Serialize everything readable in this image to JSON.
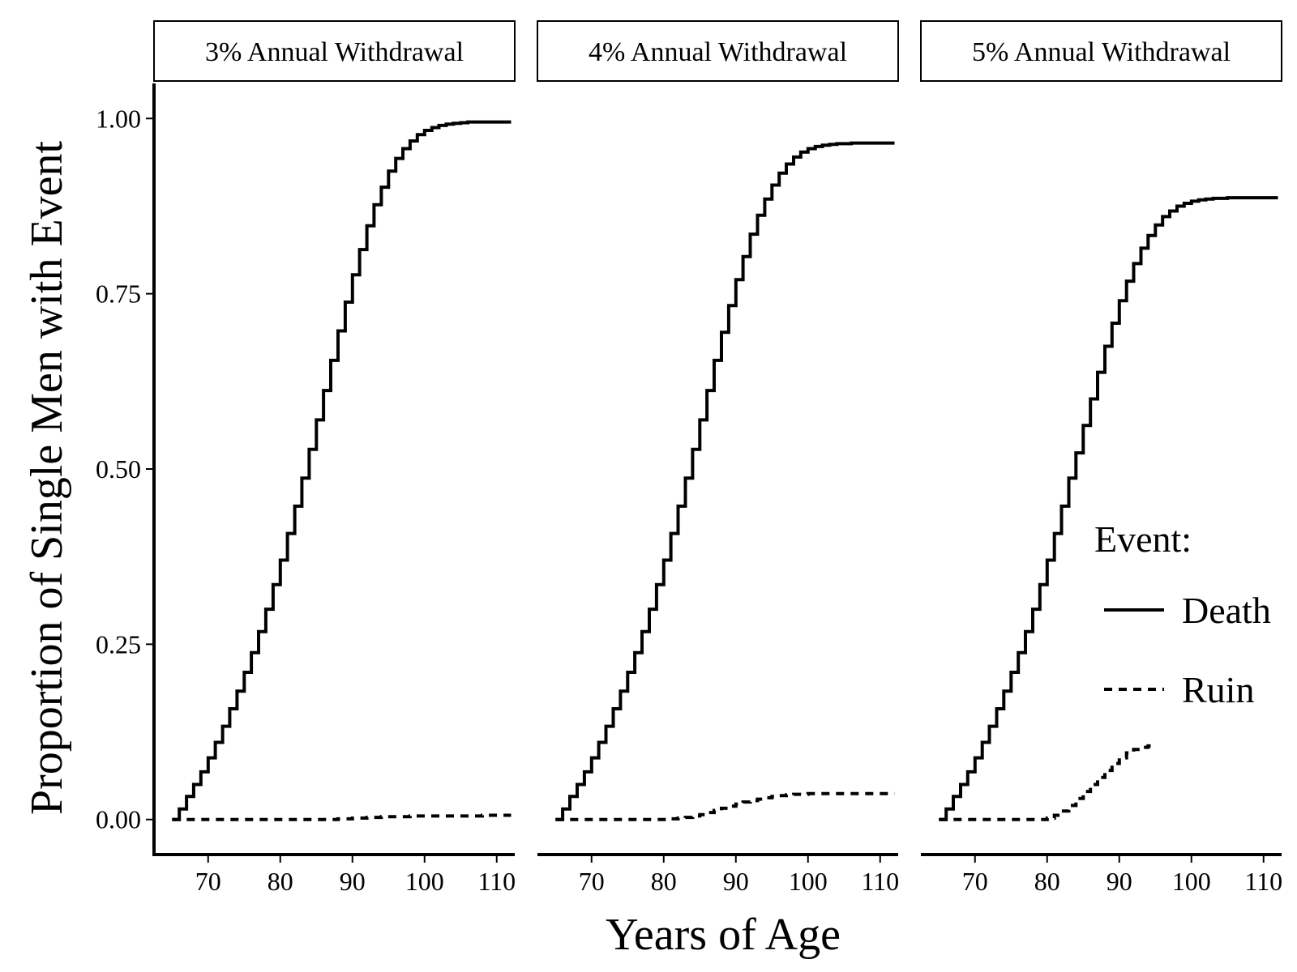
{
  "chart_data": {
    "type": "line",
    "xlabel": "Years of Age",
    "ylabel": "Proportion of Single Men with Event",
    "xlim": [
      62.5,
      112.5
    ],
    "ylim": [
      -0.05,
      1.05
    ],
    "x_ticks": [
      70,
      80,
      90,
      100,
      110
    ],
    "y_ticks": [
      0,
      0.25,
      0.5,
      0.75,
      1
    ],
    "x_tick_labels": [
      "70",
      "80",
      "90",
      "100",
      "110"
    ],
    "y_tick_labels": [
      "0.00",
      "0.25",
      "0.50",
      "0.75",
      "1.00"
    ],
    "legend": {
      "title": "Event:",
      "position": "right-inside",
      "items": [
        {
          "label": "Death",
          "linestyle": "solid"
        },
        {
          "label": "Ruin",
          "linestyle": "dashed"
        }
      ]
    },
    "step": true,
    "grid": false,
    "panels": [
      {
        "title": "3% Annual Withdrawal",
        "series": [
          {
            "name": "Death",
            "linestyle": "solid",
            "x": [
              65,
              66,
              67,
              68,
              69,
              70,
              71,
              72,
              73,
              74,
              75,
              76,
              77,
              78,
              79,
              80,
              81,
              82,
              83,
              84,
              85,
              86,
              87,
              88,
              89,
              90,
              91,
              92,
              93,
              94,
              95,
              96,
              97,
              98,
              99,
              100,
              101,
              102,
              103,
              104,
              105,
              106,
              108,
              110,
              112
            ],
            "y": [
              0,
              0.015,
              0.033,
              0.05,
              0.068,
              0.088,
              0.11,
              0.133,
              0.158,
              0.183,
              0.21,
              0.238,
              0.268,
              0.3,
              0.335,
              0.37,
              0.408,
              0.447,
              0.487,
              0.528,
              0.57,
              0.612,
              0.655,
              0.697,
              0.738,
              0.777,
              0.813,
              0.847,
              0.877,
              0.902,
              0.925,
              0.943,
              0.957,
              0.968,
              0.977,
              0.983,
              0.987,
              0.99,
              0.992,
              0.993,
              0.994,
              0.995,
              0.995,
              0.995,
              0.995
            ]
          },
          {
            "name": "Ruin",
            "linestyle": "dashed",
            "x": [
              65,
              86,
              88,
              90,
              92,
              94,
              96,
              98,
              100,
              104,
              108,
              112
            ],
            "y": [
              0,
              0,
              0.001,
              0.002,
              0.003,
              0.004,
              0.004,
              0.005,
              0.005,
              0.005,
              0.006,
              0.006
            ]
          }
        ]
      },
      {
        "title": "4% Annual Withdrawal",
        "series": [
          {
            "name": "Death",
            "linestyle": "solid",
            "x": [
              65,
              66,
              67,
              68,
              69,
              70,
              71,
              72,
              73,
              74,
              75,
              76,
              77,
              78,
              79,
              80,
              81,
              82,
              83,
              84,
              85,
              86,
              87,
              88,
              89,
              90,
              91,
              92,
              93,
              94,
              95,
              96,
              97,
              98,
              99,
              100,
              101,
              102,
              103,
              104,
              105,
              106,
              108,
              110,
              112
            ],
            "y": [
              0,
              0.015,
              0.033,
              0.05,
              0.068,
              0.088,
              0.11,
              0.133,
              0.158,
              0.183,
              0.21,
              0.238,
              0.268,
              0.3,
              0.335,
              0.37,
              0.408,
              0.447,
              0.487,
              0.528,
              0.57,
              0.612,
              0.655,
              0.695,
              0.733,
              0.77,
              0.803,
              0.835,
              0.862,
              0.885,
              0.905,
              0.922,
              0.935,
              0.945,
              0.952,
              0.957,
              0.96,
              0.962,
              0.963,
              0.964,
              0.964,
              0.965,
              0.965,
              0.965,
              0.965
            ]
          },
          {
            "name": "Ruin",
            "linestyle": "dashed",
            "x": [
              65,
              80,
              81,
              82,
              83,
              84,
              85,
              86,
              87,
              88,
              89,
              90,
              91,
              92,
              93,
              94,
              95,
              96,
              97,
              98,
              99,
              100,
              102,
              104,
              106,
              108,
              110,
              112
            ],
            "y": [
              0,
              0,
              0.001,
              0.002,
              0.003,
              0.005,
              0.007,
              0.01,
              0.013,
              0.016,
              0.019,
              0.022,
              0.025,
              0.027,
              0.029,
              0.031,
              0.033,
              0.034,
              0.035,
              0.036,
              0.036,
              0.037,
              0.037,
              0.037,
              0.037,
              0.037,
              0.037,
              0.037
            ]
          }
        ]
      },
      {
        "title": "5% Annual Withdrawal",
        "series": [
          {
            "name": "Death",
            "linestyle": "solid",
            "x": [
              65,
              66,
              67,
              68,
              69,
              70,
              71,
              72,
              73,
              74,
              75,
              76,
              77,
              78,
              79,
              80,
              81,
              82,
              83,
              84,
              85,
              86,
              87,
              88,
              89,
              90,
              91,
              92,
              93,
              94,
              95,
              96,
              97,
              98,
              99,
              100,
              101,
              102,
              103,
              104,
              105,
              106,
              108,
              110,
              112
            ],
            "y": [
              0,
              0.015,
              0.033,
              0.05,
              0.068,
              0.088,
              0.11,
              0.133,
              0.158,
              0.183,
              0.21,
              0.238,
              0.268,
              0.3,
              0.335,
              0.37,
              0.408,
              0.447,
              0.487,
              0.523,
              0.562,
              0.6,
              0.638,
              0.675,
              0.708,
              0.74,
              0.768,
              0.793,
              0.815,
              0.833,
              0.848,
              0.86,
              0.868,
              0.875,
              0.879,
              0.882,
              0.884,
              0.885,
              0.886,
              0.886,
              0.887,
              0.887,
              0.887,
              0.887,
              0.887
            ]
          },
          {
            "name": "Ruin",
            "linestyle": "dashed",
            "x": [
              65,
              79,
              80,
              81,
              82,
              83,
              84,
              85,
              86,
              87,
              88,
              89,
              90,
              91,
              92,
              93,
              94,
              95
            ],
            "y": [
              0,
              0,
              0.002,
              0.006,
              0.012,
              0.02,
              0.03,
              0.04,
              0.05,
              0.06,
              0.07,
              0.08,
              0.088,
              0.095,
              0.1,
              0.103,
              0.105,
              0.105
            ]
          }
        ]
      }
    ]
  }
}
